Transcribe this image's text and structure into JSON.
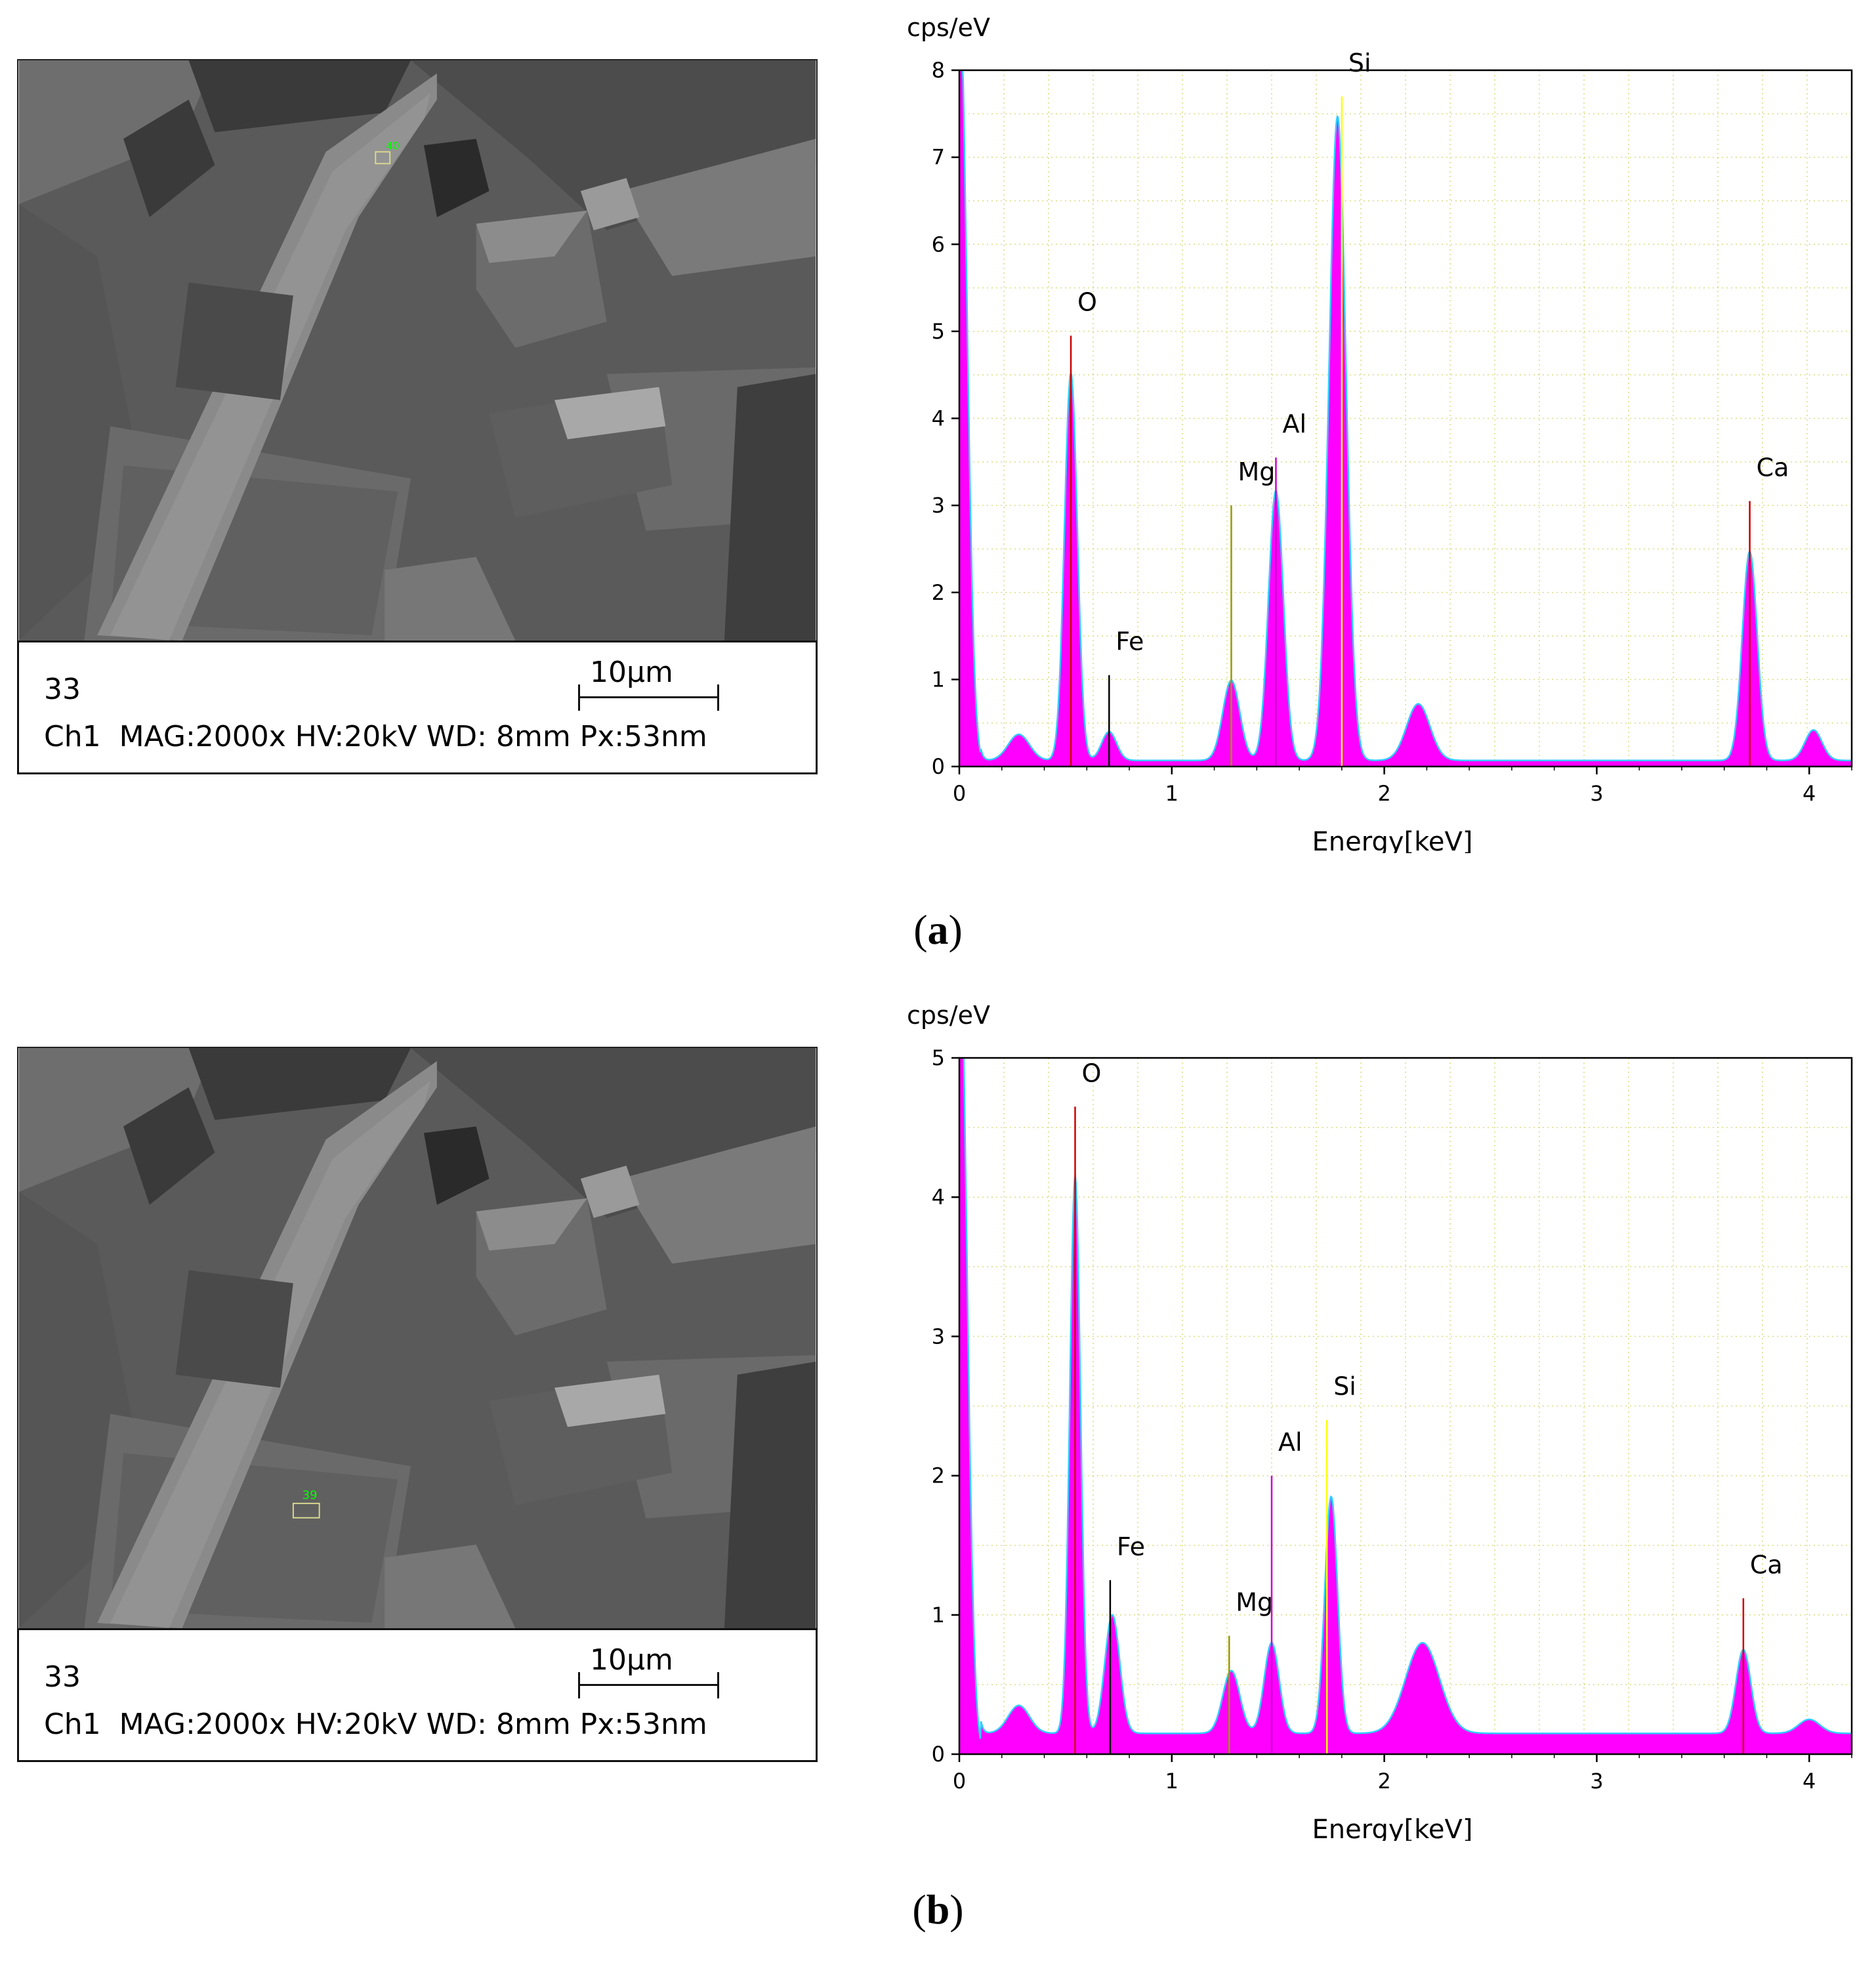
{
  "panels": [
    {
      "caption": "(a)",
      "caption_letter": "a",
      "sem": {
        "sample_id": "33",
        "info": "Ch1  MAG:2000x HV:20kV WD: 8mm Px:53nm",
        "scale_label": "10µm",
        "marker_label": "40"
      }
    },
    {
      "caption": "(b)",
      "caption_letter": "b",
      "sem": {
        "sample_id": "33",
        "info": "Ch1  MAG:2000x HV:20kV WD: 8mm Px:53nm",
        "scale_label": "10µm",
        "marker_label": "39"
      }
    }
  ],
  "chart_data": [
    {
      "type": "area",
      "title": "",
      "ylabel": "cps/eV",
      "xlabel": "Energy[keV]",
      "xlim": [
        0,
        4.2
      ],
      "ylim": [
        0,
        8
      ],
      "xticks": [
        0,
        1,
        2,
        3,
        4
      ],
      "yticks": [
        0,
        1,
        2,
        3,
        4,
        5,
        6,
        7,
        8
      ],
      "grid": true,
      "fill_color": "#ff00ff",
      "outline_color": "#33ccff",
      "baseline": 0.07,
      "peaks": [
        {
          "x": 0.0,
          "h": 9.0,
          "w": 0.035
        },
        {
          "x": 0.28,
          "h": 0.3,
          "w": 0.05
        },
        {
          "x": 0.525,
          "h": 4.45,
          "w": 0.03
        },
        {
          "x": 0.705,
          "h": 0.33,
          "w": 0.035
        },
        {
          "x": 1.28,
          "h": 0.92,
          "w": 0.04
        },
        {
          "x": 1.49,
          "h": 3.1,
          "w": 0.035
        },
        {
          "x": 1.78,
          "h": 7.4,
          "w": 0.04
        },
        {
          "x": 2.16,
          "h": 0.65,
          "w": 0.055
        },
        {
          "x": 3.72,
          "h": 2.4,
          "w": 0.035
        },
        {
          "x": 4.02,
          "h": 0.35,
          "w": 0.04
        }
      ],
      "element_labels": [
        {
          "label": "O",
          "x": 0.525,
          "line_top": 4.95,
          "color": "#cc0000"
        },
        {
          "label": "Fe",
          "x": 0.705,
          "line_top": 1.05,
          "color": "#000000"
        },
        {
          "label": "Mg",
          "x": 1.28,
          "line_top": 3.0,
          "color": "#999900"
        },
        {
          "label": "Al",
          "x": 1.49,
          "line_top": 3.55,
          "color": "#cc00cc"
        },
        {
          "label": "Si",
          "x": 1.8,
          "line_top": 7.7,
          "color": "#ffff00"
        },
        {
          "label": "Ca",
          "x": 3.72,
          "line_top": 3.05,
          "color": "#cc0000"
        }
      ]
    },
    {
      "type": "area",
      "title": "",
      "ylabel": "cps/eV",
      "xlabel": "Energy[keV]",
      "xlim": [
        0,
        4.2
      ],
      "ylim": [
        0,
        5
      ],
      "xticks": [
        0,
        1,
        2,
        3,
        4
      ],
      "yticks": [
        0,
        1,
        2,
        3,
        4,
        5
      ],
      "grid": true,
      "fill_color": "#ff00ff",
      "outline_color": "#33ccff",
      "baseline": 0.15,
      "peaks": [
        {
          "x": 0.0,
          "h": 6.0,
          "w": 0.035
        },
        {
          "x": 0.28,
          "h": 0.2,
          "w": 0.05
        },
        {
          "x": 0.545,
          "h": 4.0,
          "w": 0.025
        },
        {
          "x": 0.72,
          "h": 0.85,
          "w": 0.035
        },
        {
          "x": 1.28,
          "h": 0.45,
          "w": 0.04
        },
        {
          "x": 1.47,
          "h": 0.65,
          "w": 0.035
        },
        {
          "x": 1.75,
          "h": 1.7,
          "w": 0.03
        },
        {
          "x": 2.18,
          "h": 0.65,
          "w": 0.08
        },
        {
          "x": 3.69,
          "h": 0.6,
          "w": 0.035
        },
        {
          "x": 4.0,
          "h": 0.1,
          "w": 0.05
        }
      ],
      "element_labels": [
        {
          "label": "O",
          "x": 0.545,
          "line_top": 4.65,
          "color": "#cc0000"
        },
        {
          "label": "Fe",
          "x": 0.71,
          "line_top": 1.25,
          "color": "#000000"
        },
        {
          "label": "Mg",
          "x": 1.27,
          "line_top": 0.85,
          "color": "#999900"
        },
        {
          "label": "Al",
          "x": 1.47,
          "line_top": 2.0,
          "color": "#cc00cc"
        },
        {
          "label": "Si",
          "x": 1.73,
          "line_top": 2.4,
          "color": "#ffff00"
        },
        {
          "label": "Ca",
          "x": 3.69,
          "line_top": 1.12,
          "color": "#cc0000"
        }
      ]
    }
  ]
}
